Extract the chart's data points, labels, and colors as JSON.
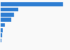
{
  "values": [
    471000,
    133000,
    104000,
    80000,
    33000,
    19000,
    12000,
    6000,
    2000
  ],
  "bar_color": "#2d7dd2",
  "background_color": "#f9f9f9",
  "grid_color": "#d0d0d0",
  "xlim": [
    0,
    520000
  ]
}
